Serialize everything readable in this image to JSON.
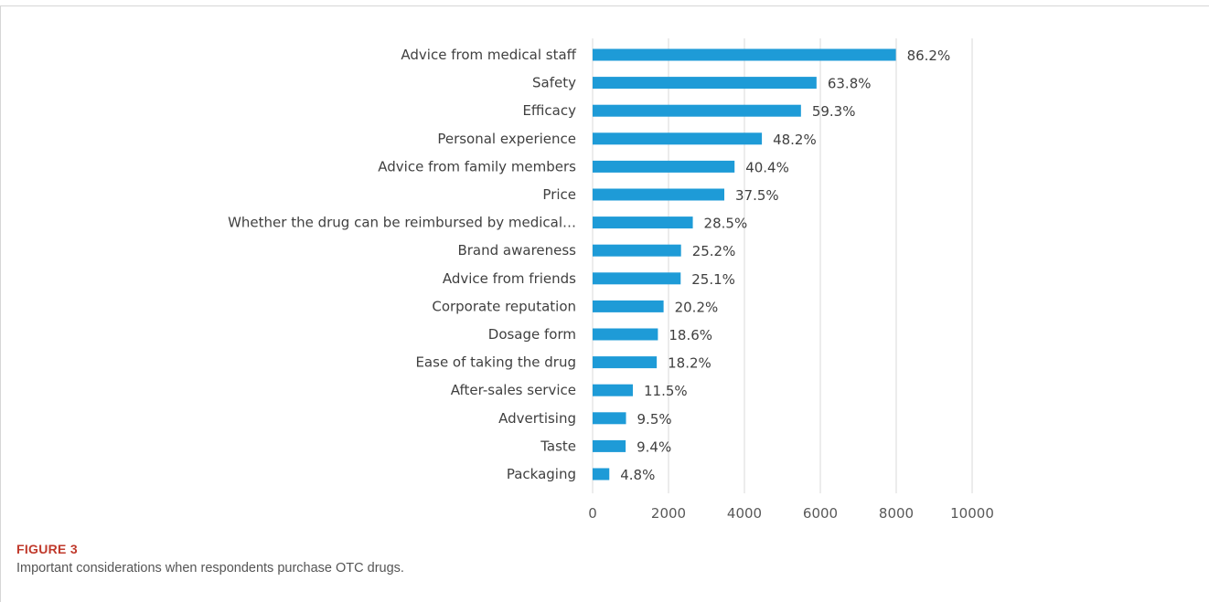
{
  "figure": {
    "label": "FIGURE 3",
    "caption": "Important considerations when respondents purchase OTC drugs."
  },
  "colors": {
    "bar": "#1e9bd7",
    "grid": "#d9d9d9",
    "label_red": "#c0392b"
  },
  "chart_data": {
    "type": "bar",
    "orientation": "horizontal",
    "categories": [
      "Advice from medical staff",
      "Safety",
      "Efficacy",
      "Personal experience",
      "Advice from family members",
      "Price",
      "Whether the drug can be reimbursed by medical…",
      "Brand awareness",
      "Advice from friends",
      "Corporate reputation",
      "Dosage form",
      "Ease of taking the drug",
      "After-sales service",
      "Advertising",
      "Taste",
      "Packaging"
    ],
    "values": [
      7990,
      5900,
      5490,
      4460,
      3740,
      3470,
      2640,
      2330,
      2320,
      1870,
      1720,
      1690,
      1060,
      880,
      870,
      440
    ],
    "data_labels": [
      "86.2%",
      "63.8%",
      "59.3%",
      "48.2%",
      "40.4%",
      "37.5%",
      "28.5%",
      "25.2%",
      "25.1%",
      "20.2%",
      "18.6%",
      "18.2%",
      "11.5%",
      "9.5%",
      "9.4%",
      "4.8%"
    ],
    "xlim": [
      0,
      10000
    ],
    "xticks": [
      0,
      2000,
      4000,
      6000,
      8000,
      10000
    ],
    "xtick_labels": [
      "0",
      "2000",
      "4000",
      "6000",
      "8000",
      "10000"
    ],
    "grid": "vertical",
    "legend": "none",
    "title": "",
    "xlabel": "",
    "ylabel": ""
  }
}
